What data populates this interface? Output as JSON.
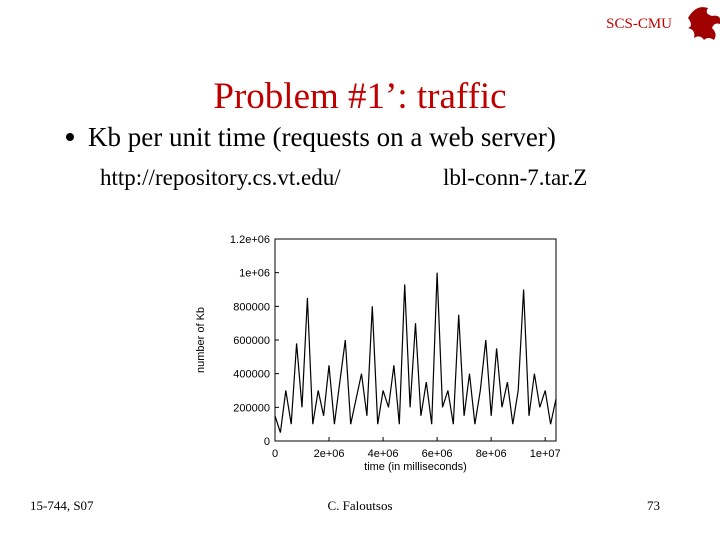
{
  "header": {
    "org": "SCS-CMU"
  },
  "title": "Problem #1’: traffic",
  "bullet": "Kb per unit time (requests  on a web server)",
  "source": {
    "url": "http://repository.cs.vt.edu/",
    "file": "lbl-conn-7.tar.Z"
  },
  "chart_data": {
    "type": "line",
    "x_label": "time (in milliseconds)",
    "y_label": "number of Kb",
    "color": "#000000",
    "xlim": [
      0,
      10400000
    ],
    "ylim": [
      0,
      1200000
    ],
    "xticks": [
      0,
      {
        "value": 2000000,
        "label": "2e+06"
      },
      {
        "value": 4000000,
        "label": "4e+06"
      },
      {
        "value": 6000000,
        "label": "6e+06"
      },
      {
        "value": 8000000,
        "label": "8e+06"
      },
      {
        "value": 10000000,
        "label": "1e+07"
      }
    ],
    "yticks": [
      0,
      200000,
      400000,
      600000,
      800000,
      {
        "value": 1000000,
        "label": "1e+06"
      },
      {
        "value": 1200000,
        "label": "1.2e+06"
      }
    ],
    "x": [
      0,
      200000,
      400000,
      600000,
      800000,
      1000000,
      1200000,
      1400000,
      1600000,
      1800000,
      2000000,
      2200000,
      2400000,
      2600000,
      2800000,
      3000000,
      3200000,
      3400000,
      3600000,
      3800000,
      4000000,
      4200000,
      4400000,
      4600000,
      4800000,
      5000000,
      5200000,
      5400000,
      5600000,
      5800000,
      6000000,
      6200000,
      6400000,
      6600000,
      6800000,
      7000000,
      7200000,
      7400000,
      7600000,
      7800000,
      8000000,
      8200000,
      8400000,
      8600000,
      8800000,
      9000000,
      9200000,
      9400000,
      9600000,
      9800000,
      10000000,
      10200000,
      10400000
    ],
    "values": [
      150000,
      50000,
      300000,
      100000,
      580000,
      200000,
      850000,
      100000,
      300000,
      150000,
      450000,
      100000,
      350000,
      600000,
      100000,
      250000,
      400000,
      150000,
      800000,
      100000,
      300000,
      200000,
      450000,
      100000,
      930000,
      200000,
      700000,
      150000,
      350000,
      100000,
      1000000,
      200000,
      300000,
      100000,
      750000,
      150000,
      400000,
      100000,
      300000,
      600000,
      150000,
      550000,
      200000,
      350000,
      100000,
      300000,
      900000,
      150000,
      400000,
      200000,
      300000,
      100000,
      250000
    ]
  },
  "footer": {
    "course": "15-744, S07",
    "author": "C. Faloutsos",
    "page": "73"
  }
}
